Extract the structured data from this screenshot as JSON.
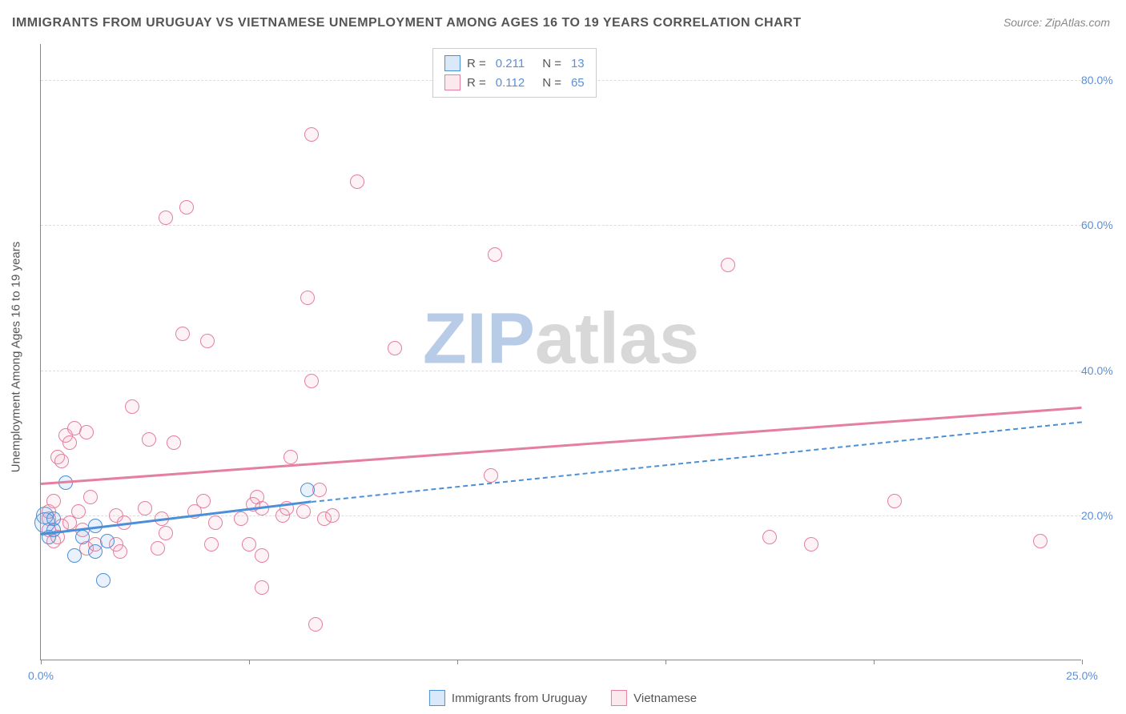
{
  "title": "IMMIGRANTS FROM URUGUAY VS VIETNAMESE UNEMPLOYMENT AMONG AGES 16 TO 19 YEARS CORRELATION CHART",
  "source": "Source: ZipAtlas.com",
  "y_axis_title": "Unemployment Among Ages 16 to 19 years",
  "watermark_zip": "ZIP",
  "watermark_atlas": "atlas",
  "watermark_color_zip": "#b8cce8",
  "watermark_color_atlas": "#d8d8d8",
  "chart": {
    "type": "scatter",
    "background_color": "#ffffff",
    "grid_color": "#dddddd",
    "axis_color": "#888888",
    "tick_label_color": "#5b8fd6",
    "xlim": [
      0,
      25
    ],
    "ylim": [
      0,
      85
    ],
    "x_ticks": [
      0,
      5,
      10,
      15,
      20,
      25
    ],
    "x_tick_labels": [
      "0.0%",
      "",
      "",
      "",
      "",
      "25.0%"
    ],
    "y_ticks": [
      20,
      40,
      60,
      80
    ],
    "y_tick_labels": [
      "20.0%",
      "40.0%",
      "60.0%",
      "80.0%"
    ],
    "marker_radius": 9,
    "marker_border_width": 1.5,
    "marker_fill_opacity": 0.15,
    "series": [
      {
        "name": "Immigrants from Uruguay",
        "color": "#6ca6e8",
        "border_color": "#4a8fd8",
        "R": "0.211",
        "N": "13",
        "trend": {
          "x1": 0,
          "y1": 17.5,
          "x2": 6.5,
          "y2": 22.0,
          "solid_until_x": 6.5,
          "dash_to_x": 25,
          "dash_to_y": 33.0
        },
        "points": [
          {
            "x": 0.1,
            "y": 19.0,
            "r": 13
          },
          {
            "x": 0.1,
            "y": 20.0,
            "r": 11
          },
          {
            "x": 0.2,
            "y": 17.0
          },
          {
            "x": 0.3,
            "y": 18.0
          },
          {
            "x": 0.3,
            "y": 19.5
          },
          {
            "x": 0.6,
            "y": 24.5
          },
          {
            "x": 0.8,
            "y": 14.5
          },
          {
            "x": 1.0,
            "y": 17.0
          },
          {
            "x": 1.3,
            "y": 15.0
          },
          {
            "x": 1.3,
            "y": 18.5
          },
          {
            "x": 1.5,
            "y": 11.0
          },
          {
            "x": 1.6,
            "y": 16.5
          },
          {
            "x": 6.4,
            "y": 23.5
          }
        ]
      },
      {
        "name": "Vietnamese",
        "color": "#f1a7bd",
        "border_color": "#e57f9f",
        "R": "0.112",
        "N": "65",
        "trend": {
          "x1": 0,
          "y1": 24.5,
          "x2": 25,
          "y2": 35.0,
          "solid_until_x": 25
        },
        "points": [
          {
            "x": 0.2,
            "y": 18.0
          },
          {
            "x": 0.2,
            "y": 19.5
          },
          {
            "x": 0.2,
            "y": 20.5
          },
          {
            "x": 0.3,
            "y": 22.0
          },
          {
            "x": 0.3,
            "y": 16.5
          },
          {
            "x": 0.4,
            "y": 17.0
          },
          {
            "x": 0.4,
            "y": 28.0
          },
          {
            "x": 0.5,
            "y": 27.5
          },
          {
            "x": 0.5,
            "y": 18.5
          },
          {
            "x": 0.6,
            "y": 31.0
          },
          {
            "x": 0.7,
            "y": 30.0
          },
          {
            "x": 0.7,
            "y": 19.0
          },
          {
            "x": 0.8,
            "y": 32.0
          },
          {
            "x": 0.9,
            "y": 20.5
          },
          {
            "x": 1.0,
            "y": 18.0
          },
          {
            "x": 1.1,
            "y": 31.5
          },
          {
            "x": 1.1,
            "y": 15.5
          },
          {
            "x": 1.2,
            "y": 22.5
          },
          {
            "x": 1.3,
            "y": 16.0
          },
          {
            "x": 1.8,
            "y": 16.0
          },
          {
            "x": 1.8,
            "y": 20.0
          },
          {
            "x": 1.9,
            "y": 15.0
          },
          {
            "x": 2.0,
            "y": 19.0
          },
          {
            "x": 2.2,
            "y": 35.0
          },
          {
            "x": 2.5,
            "y": 21.0
          },
          {
            "x": 2.6,
            "y": 30.5
          },
          {
            "x": 2.8,
            "y": 15.5
          },
          {
            "x": 2.9,
            "y": 19.5
          },
          {
            "x": 3.0,
            "y": 17.5
          },
          {
            "x": 3.0,
            "y": 61.0
          },
          {
            "x": 3.2,
            "y": 30.0
          },
          {
            "x": 3.4,
            "y": 45.0
          },
          {
            "x": 3.5,
            "y": 62.5
          },
          {
            "x": 3.7,
            "y": 20.5
          },
          {
            "x": 3.9,
            "y": 22.0
          },
          {
            "x": 4.0,
            "y": 44.0
          },
          {
            "x": 4.1,
            "y": 16.0
          },
          {
            "x": 4.2,
            "y": 19.0
          },
          {
            "x": 4.8,
            "y": 19.5
          },
          {
            "x": 5.0,
            "y": 16.0
          },
          {
            "x": 5.1,
            "y": 21.5
          },
          {
            "x": 5.2,
            "y": 22.5
          },
          {
            "x": 5.3,
            "y": 14.5
          },
          {
            "x": 5.3,
            "y": 21.0
          },
          {
            "x": 5.3,
            "y": 10.0
          },
          {
            "x": 5.8,
            "y": 20.0
          },
          {
            "x": 5.9,
            "y": 21.0
          },
          {
            "x": 6.0,
            "y": 28.0
          },
          {
            "x": 6.3,
            "y": 20.5
          },
          {
            "x": 6.4,
            "y": 50.0
          },
          {
            "x": 6.5,
            "y": 38.5
          },
          {
            "x": 6.5,
            "y": 72.5
          },
          {
            "x": 6.6,
            "y": 5.0
          },
          {
            "x": 6.7,
            "y": 23.5
          },
          {
            "x": 6.8,
            "y": 19.5
          },
          {
            "x": 7.0,
            "y": 20.0
          },
          {
            "x": 7.6,
            "y": 66.0
          },
          {
            "x": 8.5,
            "y": 43.0
          },
          {
            "x": 10.8,
            "y": 25.5
          },
          {
            "x": 10.9,
            "y": 56.0
          },
          {
            "x": 16.5,
            "y": 54.5
          },
          {
            "x": 17.5,
            "y": 17.0
          },
          {
            "x": 18.5,
            "y": 16.0
          },
          {
            "x": 20.5,
            "y": 22.0
          },
          {
            "x": 24.0,
            "y": 16.5
          }
        ]
      }
    ]
  },
  "legend_labels": {
    "R": "R =",
    "N": "N ="
  }
}
